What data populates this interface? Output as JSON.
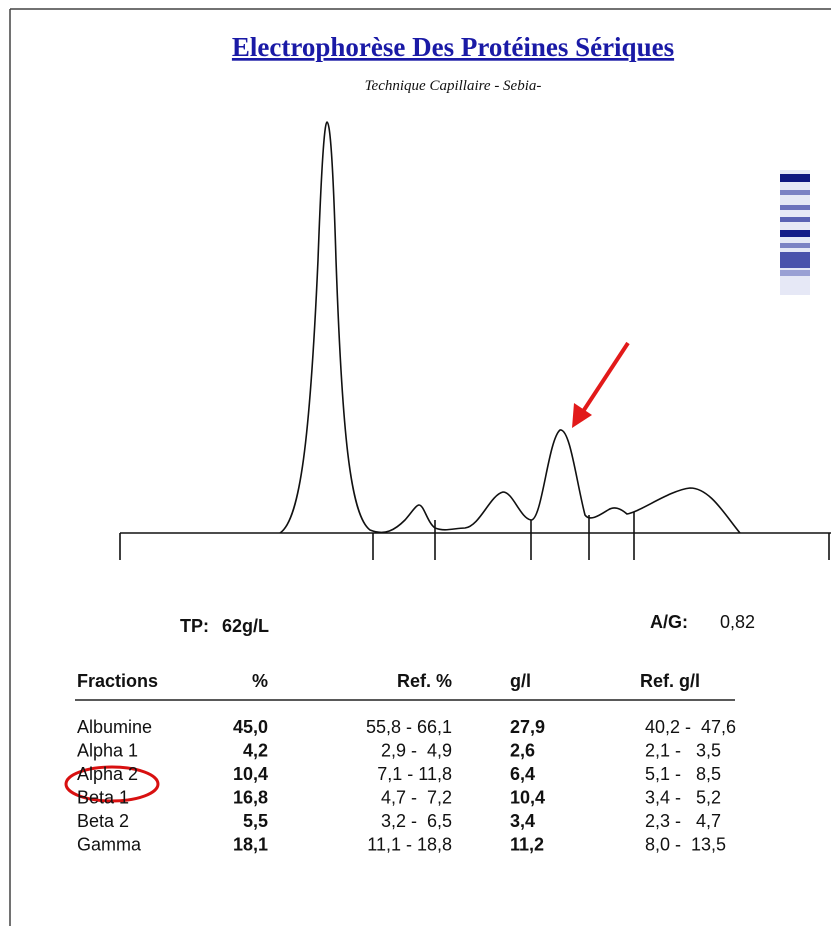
{
  "header": {
    "title": "Electrophorèse Des Protéines Sériques",
    "subtitle": "Technique Capillaire - Sebia-"
  },
  "totals": {
    "tp_label": "TP:",
    "tp_value": "62g/L",
    "ag_label": "A/G:",
    "ag_value": "0,82"
  },
  "table": {
    "columns": [
      "Fractions",
      "%",
      "Ref. %",
      "g/l",
      "Ref. g/l"
    ],
    "rows": [
      [
        "Albumine",
        "45,0",
        "55,8 - 66,1",
        "27,9",
        "40,2 -  47,6"
      ],
      [
        "Alpha 1",
        "4,2",
        "2,9 -  4,9",
        "2,6",
        "2,1 -   3,5"
      ],
      [
        "Alpha 2",
        "10,4",
        "7,1 - 11,8",
        "6,4",
        "5,1 -   8,5"
      ],
      [
        "Beta 1",
        "16,8",
        "4,7 -  7,2",
        "10,4",
        "3,4 -   5,2"
      ],
      [
        "Beta 2",
        "5,5",
        "3,2 -  6,5",
        "3,4",
        "2,3 -   4,7"
      ],
      [
        "Gamma",
        "18,1",
        "11,1 - 18,8",
        "11,2",
        "8,0 -  13,5"
      ]
    ]
  }
}
